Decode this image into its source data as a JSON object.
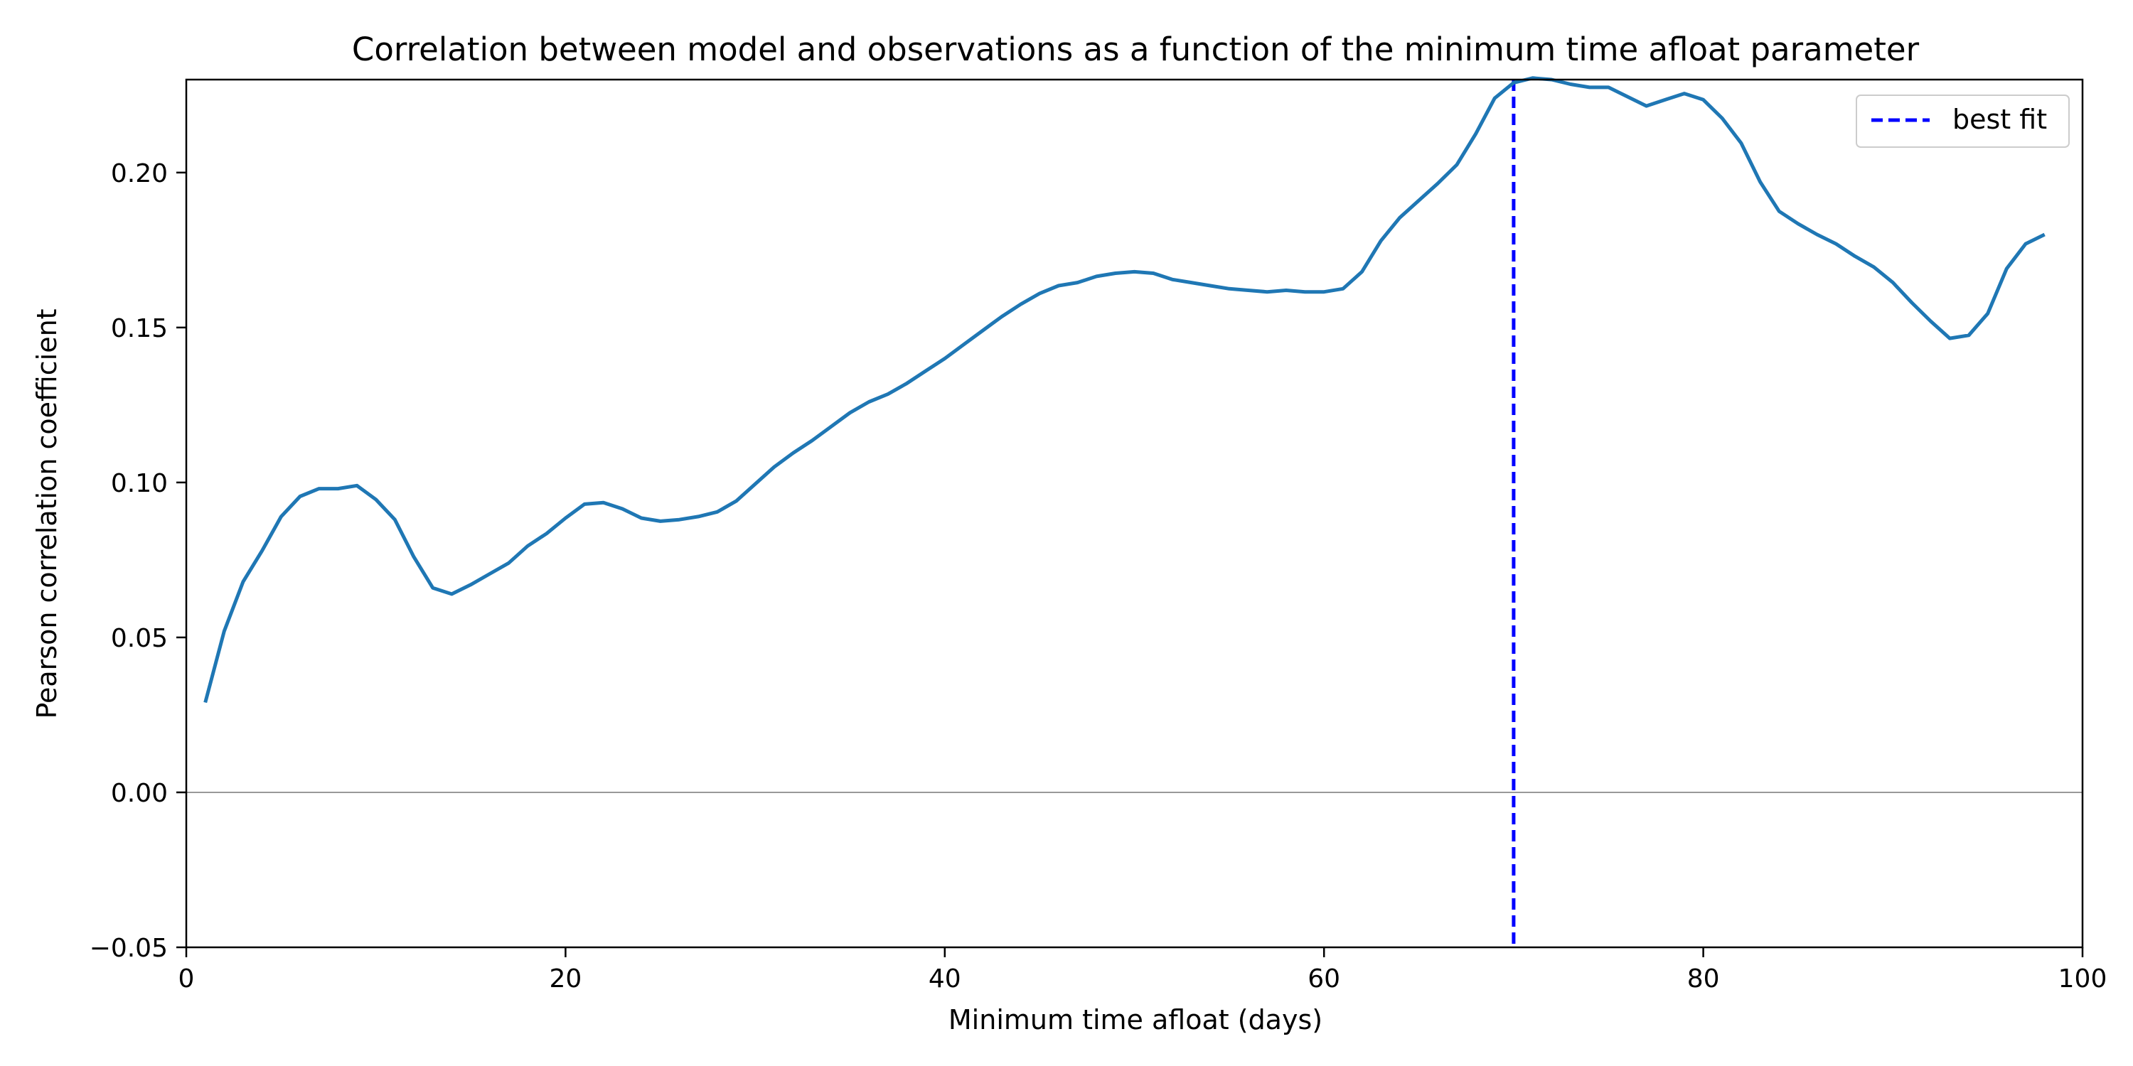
{
  "chart_data": {
    "type": "line",
    "title": "Correlation between model and observations as a function of the minimum time afloat parameter",
    "xlabel": "Minimum time afloat (days)",
    "ylabel": "Pearson correlation coefficient",
    "xlim": [
      0,
      100
    ],
    "ylim": [
      -0.05,
      0.23
    ],
    "xticks": [
      0,
      20,
      40,
      60,
      80,
      100
    ],
    "xtick_labels": [
      "0",
      "20",
      "40",
      "60",
      "80",
      "100"
    ],
    "yticks": [
      -0.05,
      0.0,
      0.05,
      0.1,
      0.15,
      0.2
    ],
    "ytick_labels": [
      "−0.05",
      "0.00",
      "0.05",
      "0.10",
      "0.15",
      "0.20"
    ],
    "grid": false,
    "legend": {
      "location": "upper right",
      "entries": [
        "best fit"
      ]
    },
    "reference_lines": [
      {
        "orientation": "horizontal",
        "y": 0.0,
        "color": "#999999",
        "style": "solid"
      },
      {
        "orientation": "vertical",
        "x": 70,
        "color": "#0000ff",
        "style": "dashed",
        "label": "best fit"
      }
    ],
    "series": [
      {
        "color": "#1f77b4",
        "x": [
          1,
          2,
          3,
          4,
          5,
          6,
          7,
          8,
          9,
          10,
          11,
          12,
          13,
          14,
          15,
          16,
          17,
          18,
          19,
          20,
          21,
          22,
          23,
          24,
          25,
          26,
          27,
          28,
          29,
          30,
          31,
          32,
          33,
          34,
          35,
          36,
          37,
          38,
          39,
          40,
          41,
          42,
          43,
          44,
          45,
          46,
          47,
          48,
          49,
          50,
          51,
          52,
          53,
          54,
          55,
          56,
          57,
          58,
          59,
          60,
          61,
          62,
          63,
          64,
          65,
          66,
          67,
          68,
          69,
          70,
          71,
          72,
          73,
          74,
          75,
          76,
          77,
          78,
          79,
          80,
          81,
          82,
          83,
          84,
          85,
          86,
          87,
          88,
          89,
          90,
          91,
          92,
          93,
          94,
          95,
          96,
          97,
          98
        ],
        "y": [
          0.029,
          0.052,
          0.068,
          0.078,
          0.089,
          0.0955,
          0.098,
          0.098,
          0.099,
          0.0945,
          0.088,
          0.076,
          0.066,
          0.064,
          0.067,
          0.0705,
          0.074,
          0.0795,
          0.0835,
          0.0885,
          0.093,
          0.0935,
          0.0915,
          0.0885,
          0.0875,
          0.088,
          0.089,
          0.0905,
          0.094,
          0.0995,
          0.105,
          0.1095,
          0.1135,
          0.118,
          0.1225,
          0.126,
          0.1285,
          0.132,
          0.136,
          0.14,
          0.1445,
          0.149,
          0.1535,
          0.1575,
          0.161,
          0.1635,
          0.1645,
          0.1665,
          0.1675,
          0.168,
          0.1675,
          0.1655,
          0.1645,
          0.1635,
          0.1625,
          0.162,
          0.1615,
          0.162,
          0.1615,
          0.1615,
          0.1625,
          0.168,
          0.178,
          0.1855,
          0.191,
          0.1965,
          0.2025,
          0.2125,
          0.224,
          0.229,
          0.2305,
          0.23,
          0.2285,
          0.2275,
          0.2275,
          0.2245,
          0.2215,
          0.2235,
          0.2255,
          0.2235,
          0.2175,
          0.2095,
          0.197,
          0.1875,
          0.1835,
          0.18,
          0.177,
          0.173,
          0.1695,
          0.1645,
          0.158,
          0.152,
          0.1465,
          0.1475,
          0.1545,
          0.169,
          0.177,
          0.18
        ]
      }
    ]
  }
}
